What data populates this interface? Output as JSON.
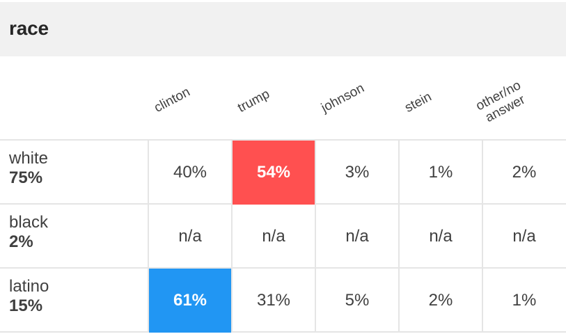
{
  "title": "race",
  "columns": [
    "clinton",
    "trump",
    "johnson",
    "stein",
    "other/no\nanswer"
  ],
  "rows": [
    {
      "name": "white",
      "share": "75%",
      "cells": [
        "40%",
        "54%",
        "3%",
        "1%",
        "2%"
      ],
      "highlight": 1,
      "highlight_color": "#ff5050"
    },
    {
      "name": "black",
      "share": "2%",
      "cells": [
        "n/a",
        "n/a",
        "n/a",
        "n/a",
        "n/a"
      ],
      "highlight": null,
      "highlight_color": null
    },
    {
      "name": "latino",
      "share": "15%",
      "cells": [
        "61%",
        "31%",
        "5%",
        "2%",
        "1%"
      ],
      "highlight": 0,
      "highlight_color": "#2196f3"
    }
  ],
  "chart_data": {
    "type": "table",
    "title": "race",
    "columns": [
      "clinton",
      "trump",
      "johnson",
      "stein",
      "other/no answer"
    ],
    "rows": [
      {
        "group": "white",
        "share": 75,
        "values": [
          40,
          54,
          3,
          1,
          2
        ]
      },
      {
        "group": "black",
        "share": 2,
        "values": [
          null,
          null,
          null,
          null,
          null
        ]
      },
      {
        "group": "latino",
        "share": 15,
        "values": [
          61,
          31,
          5,
          2,
          1
        ]
      }
    ],
    "colors": {
      "trump_highlight": "#ff5050",
      "clinton_highlight": "#2196f3"
    }
  }
}
